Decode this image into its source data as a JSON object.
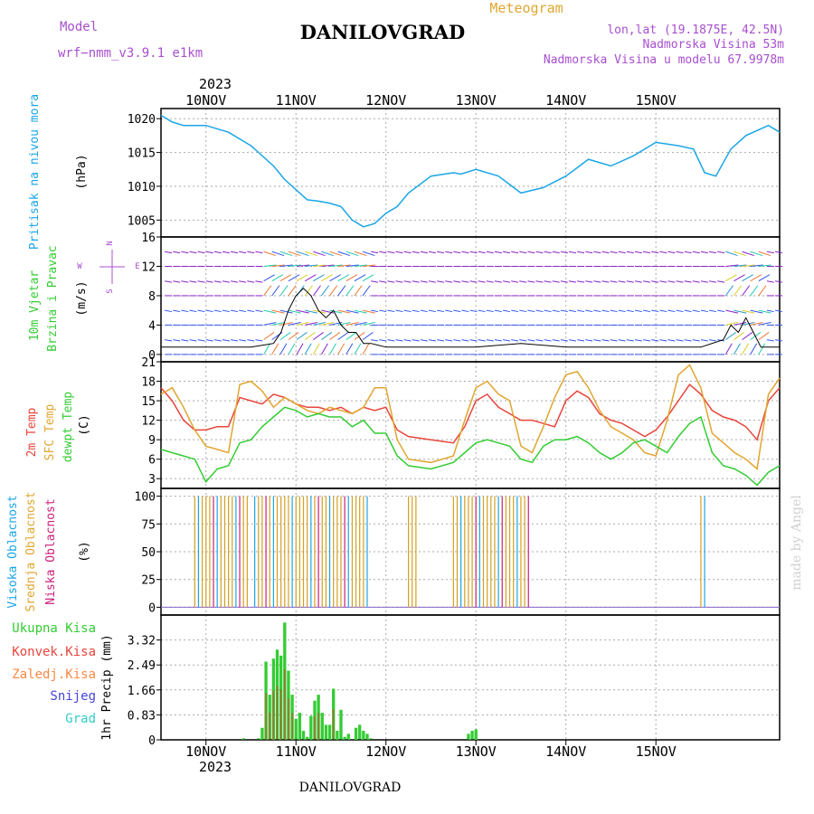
{
  "header": {
    "model_label": "Model",
    "model_name": "wrf−nmm_v3.9.1 e1km",
    "location": "DANILOVGRAD",
    "meteogram": "Meteogram",
    "lonlat": "lon,lat (19.1875E, 42.5N)",
    "elevation": "Nadmorska Visina 53m",
    "model_elevation": "Nadmorska Visina u modelu 67.9978m",
    "year": "2023",
    "footer": "DANILOVGRAD",
    "credit": "made by Angel"
  },
  "colors": {
    "pressure": "#1aa6e6",
    "temp2m": "#e8453c",
    "sfc": "#e0a630",
    "dewpt": "#33cc33",
    "high_cloud": "#1aa6e6",
    "mid_cloud": "#d4a020",
    "low_cloud": "#cc1f7a",
    "total_precip": "#33cc33",
    "conv_precip": "#e8453c",
    "grid": "#aaaaaa"
  },
  "x_axis": {
    "day_labels": [
      "10NOV",
      "11NOV",
      "12NOV",
      "13NOV",
      "14NOV",
      "15NOV"
    ]
  },
  "panels": {
    "pressure": {
      "ylabel1": "Pritisak na nivou mora",
      "ylabel2": "(hPa)",
      "ticks": [
        "1005",
        "1010",
        "1015",
        "1020"
      ]
    },
    "wind": {
      "ylabel1": "10m Vjetar",
      "ylabel2": "Brzina i Pravac",
      "ylabel3": "(m/s)",
      "ticks": [
        "0",
        "4",
        "8",
        "12",
        "16"
      ],
      "compass": {
        "n": "N",
        "w": "W",
        "e": "E",
        "s": "S"
      }
    },
    "temp": {
      "ylabel1": "2m Temp",
      "ylabel2": "SFC Temp",
      "ylabel3": "dewpt Temp",
      "ylabel4": "(C)",
      "ticks": [
        "3",
        "6",
        "9",
        "12",
        "15",
        "18",
        "21"
      ]
    },
    "cloud": {
      "ylabel1": "Visoka Oblacnost",
      "ylabel2": "Srednja Oblacnost",
      "ylabel3": "Niska Oblacnost",
      "ylabel4": "(%)",
      "ticks": [
        "0",
        "25",
        "50",
        "75",
        "100"
      ]
    },
    "precip": {
      "ylabel": "1hr Precip (mm)",
      "legend": [
        "Ukupna Kisa",
        "Konvek.Kisa",
        "Zaledj.Kisa",
        "Snijeg",
        "Grad"
      ],
      "ticks": [
        "0",
        "0.83",
        "1.66",
        "2.49",
        "3.32"
      ]
    }
  },
  "chart_data": [
    {
      "type": "line",
      "name": "pressure",
      "ylabel": "Pritisak na nivou mora (hPa)",
      "ylim": [
        1002.5,
        1021.5
      ],
      "x_unit": "hours since 09NOV 12UTC",
      "series": [
        {
          "x": [
            0,
            3,
            6,
            12,
            18,
            24,
            30,
            33,
            36,
            39,
            42,
            45,
            48,
            51,
            54,
            57,
            60,
            63,
            66,
            72,
            78,
            80,
            84,
            90,
            96,
            102,
            108,
            114,
            120,
            126,
            132,
            138,
            142,
            145,
            148,
            152,
            156,
            162,
            165
          ],
          "values": [
            1020.5,
            1019.5,
            1019,
            1019,
            1018,
            1016,
            1013,
            1011,
            1009.5,
            1008,
            1007.8,
            1007.5,
            1007,
            1005,
            1004,
            1004.5,
            1006,
            1007,
            1009,
            1011.5,
            1012,
            1011.8,
            1012.5,
            1011.5,
            1009,
            1009.8,
            1011.5,
            1014,
            1013,
            1014.5,
            1016.5,
            1016,
            1015.5,
            1012,
            1011.5,
            1015.5,
            1017.5,
            1019,
            1018
          ]
        }
      ]
    },
    {
      "type": "line",
      "name": "wind",
      "ylabel": "Brzina (m/s)",
      "ylim": [
        -1,
        16
      ],
      "series": [
        {
          "x": [
            0,
            12,
            24,
            30,
            32,
            34,
            36,
            38,
            40,
            42,
            44,
            46,
            48,
            50,
            52,
            54,
            56,
            60,
            72,
            84,
            96,
            108,
            120,
            132,
            144,
            150,
            152,
            154,
            156,
            158,
            160,
            165
          ],
          "values": [
            1,
            1,
            1,
            1.5,
            3,
            6,
            8,
            9,
            8,
            6,
            5,
            6,
            4,
            3,
            3,
            1.5,
            1.5,
            1,
            1,
            1,
            1.5,
            1,
            1,
            1,
            1,
            2,
            4,
            3,
            5,
            3,
            1,
            1
          ]
        }
      ]
    },
    {
      "type": "line",
      "name": "temperature",
      "ylabel": "(C)",
      "ylim": [
        1.5,
        21
      ],
      "series": [
        {
          "x": [
            0,
            3,
            6,
            9,
            12,
            15,
            18,
            21,
            24,
            27,
            30,
            33,
            36,
            39,
            42,
            45,
            48,
            51,
            54,
            57,
            60,
            63,
            66,
            72,
            78,
            81,
            84,
            87,
            90,
            93,
            96,
            99,
            102,
            105,
            108,
            111,
            114,
            117,
            120,
            123,
            126,
            129,
            132,
            135,
            138,
            141,
            144,
            147,
            150,
            153,
            156,
            159,
            162,
            165
          ],
          "values": [
            17,
            15,
            12,
            10.5,
            10.5,
            11,
            11,
            15.5,
            15,
            14.5,
            16,
            15.5,
            14.5,
            14,
            14,
            13.5,
            14,
            13,
            14,
            13.5,
            14,
            10.5,
            9.5,
            9,
            8.5,
            11,
            15,
            16,
            14,
            13,
            12,
            12,
            11.5,
            11,
            15,
            16.5,
            15.5,
            13,
            12,
            11.5,
            10.5,
            9.5,
            10.5,
            12.5,
            15,
            17.5,
            16,
            13.5,
            12.5,
            12,
            11,
            9,
            15,
            17
          ]
        },
        {
          "x": [
            0,
            3,
            6,
            9,
            12,
            15,
            18,
            21,
            24,
            27,
            30,
            33,
            36,
            39,
            42,
            45,
            48,
            51,
            54,
            57,
            60,
            63,
            66,
            72,
            78,
            81,
            84,
            87,
            90,
            93,
            96,
            99,
            102,
            105,
            108,
            111,
            114,
            117,
            120,
            123,
            126,
            129,
            132,
            135,
            138,
            141,
            144,
            147,
            150,
            153,
            156,
            159,
            162,
            165
          ],
          "values": [
            16,
            17,
            14,
            10.5,
            8,
            7.5,
            7,
            17.5,
            18,
            16.5,
            14,
            15.5,
            14.5,
            13.5,
            13,
            14,
            13.5,
            13,
            14,
            17,
            17,
            9,
            6,
            5.5,
            6.5,
            12,
            17,
            18,
            16,
            15,
            8,
            7,
            11,
            15.5,
            19,
            19.5,
            17,
            13.5,
            11,
            10,
            9,
            7,
            6.5,
            12,
            19,
            20.5,
            17,
            10,
            8.5,
            7,
            6,
            4.5,
            16,
            18.5
          ]
        },
        {
          "x": [
            0,
            3,
            6,
            9,
            12,
            15,
            18,
            21,
            24,
            27,
            30,
            33,
            36,
            39,
            42,
            45,
            48,
            51,
            54,
            57,
            60,
            63,
            66,
            72,
            78,
            81,
            84,
            87,
            90,
            93,
            96,
            99,
            102,
            105,
            108,
            111,
            114,
            117,
            120,
            123,
            126,
            129,
            132,
            135,
            138,
            141,
            144,
            147,
            150,
            153,
            156,
            159,
            162,
            165
          ],
          "values": [
            7.5,
            7,
            6.5,
            6,
            2.5,
            4.5,
            5,
            8.5,
            9,
            11,
            12.5,
            14,
            13.5,
            12.5,
            13,
            12.5,
            12.5,
            11,
            12,
            10,
            10,
            6.5,
            5,
            4.5,
            5.5,
            7,
            8.5,
            9,
            8.5,
            8,
            6,
            5.5,
            8,
            9,
            9,
            9.5,
            8.5,
            7,
            6,
            7,
            8.5,
            9,
            8,
            7,
            9.5,
            11.5,
            12.5,
            7,
            5,
            4.5,
            3.5,
            2,
            4,
            5
          ]
        }
      ]
    },
    {
      "type": "bar",
      "name": "cloud_cover",
      "ylabel": "(%)",
      "ylim": [
        0,
        100
      ],
      "x_ranges_100pct": [
        [
          9,
          23
        ],
        [
          25,
          33
        ],
        [
          34,
          55
        ],
        [
          66,
          68
        ],
        [
          78,
          80
        ],
        [
          81,
          98
        ],
        [
          144,
          145
        ]
      ],
      "categories": [
        "high",
        "mid",
        "low"
      ]
    },
    {
      "type": "bar",
      "name": "precip",
      "ylabel": "1hr Precip (mm)",
      "ylim": [
        0,
        4.15
      ],
      "x": [
        22,
        26,
        27,
        28,
        29,
        30,
        31,
        32,
        33,
        34,
        35,
        36,
        37,
        38,
        39,
        40,
        41,
        42,
        43,
        44,
        45,
        46,
        47,
        48,
        49,
        50,
        52,
        53,
        54,
        55,
        56,
        82,
        83,
        84
      ],
      "values": [
        0.05,
        0.05,
        0.4,
        2.6,
        1.5,
        2.7,
        3.0,
        2.8,
        3.9,
        2.3,
        1.5,
        0.7,
        0.9,
        0.3,
        0.1,
        0.8,
        1.3,
        1.5,
        0.9,
        0.5,
        0.5,
        1.7,
        0.3,
        1.0,
        0.1,
        0.2,
        0.4,
        0.5,
        0.3,
        0.2,
        0.05,
        0.2,
        0.3,
        0.35
      ]
    }
  ]
}
